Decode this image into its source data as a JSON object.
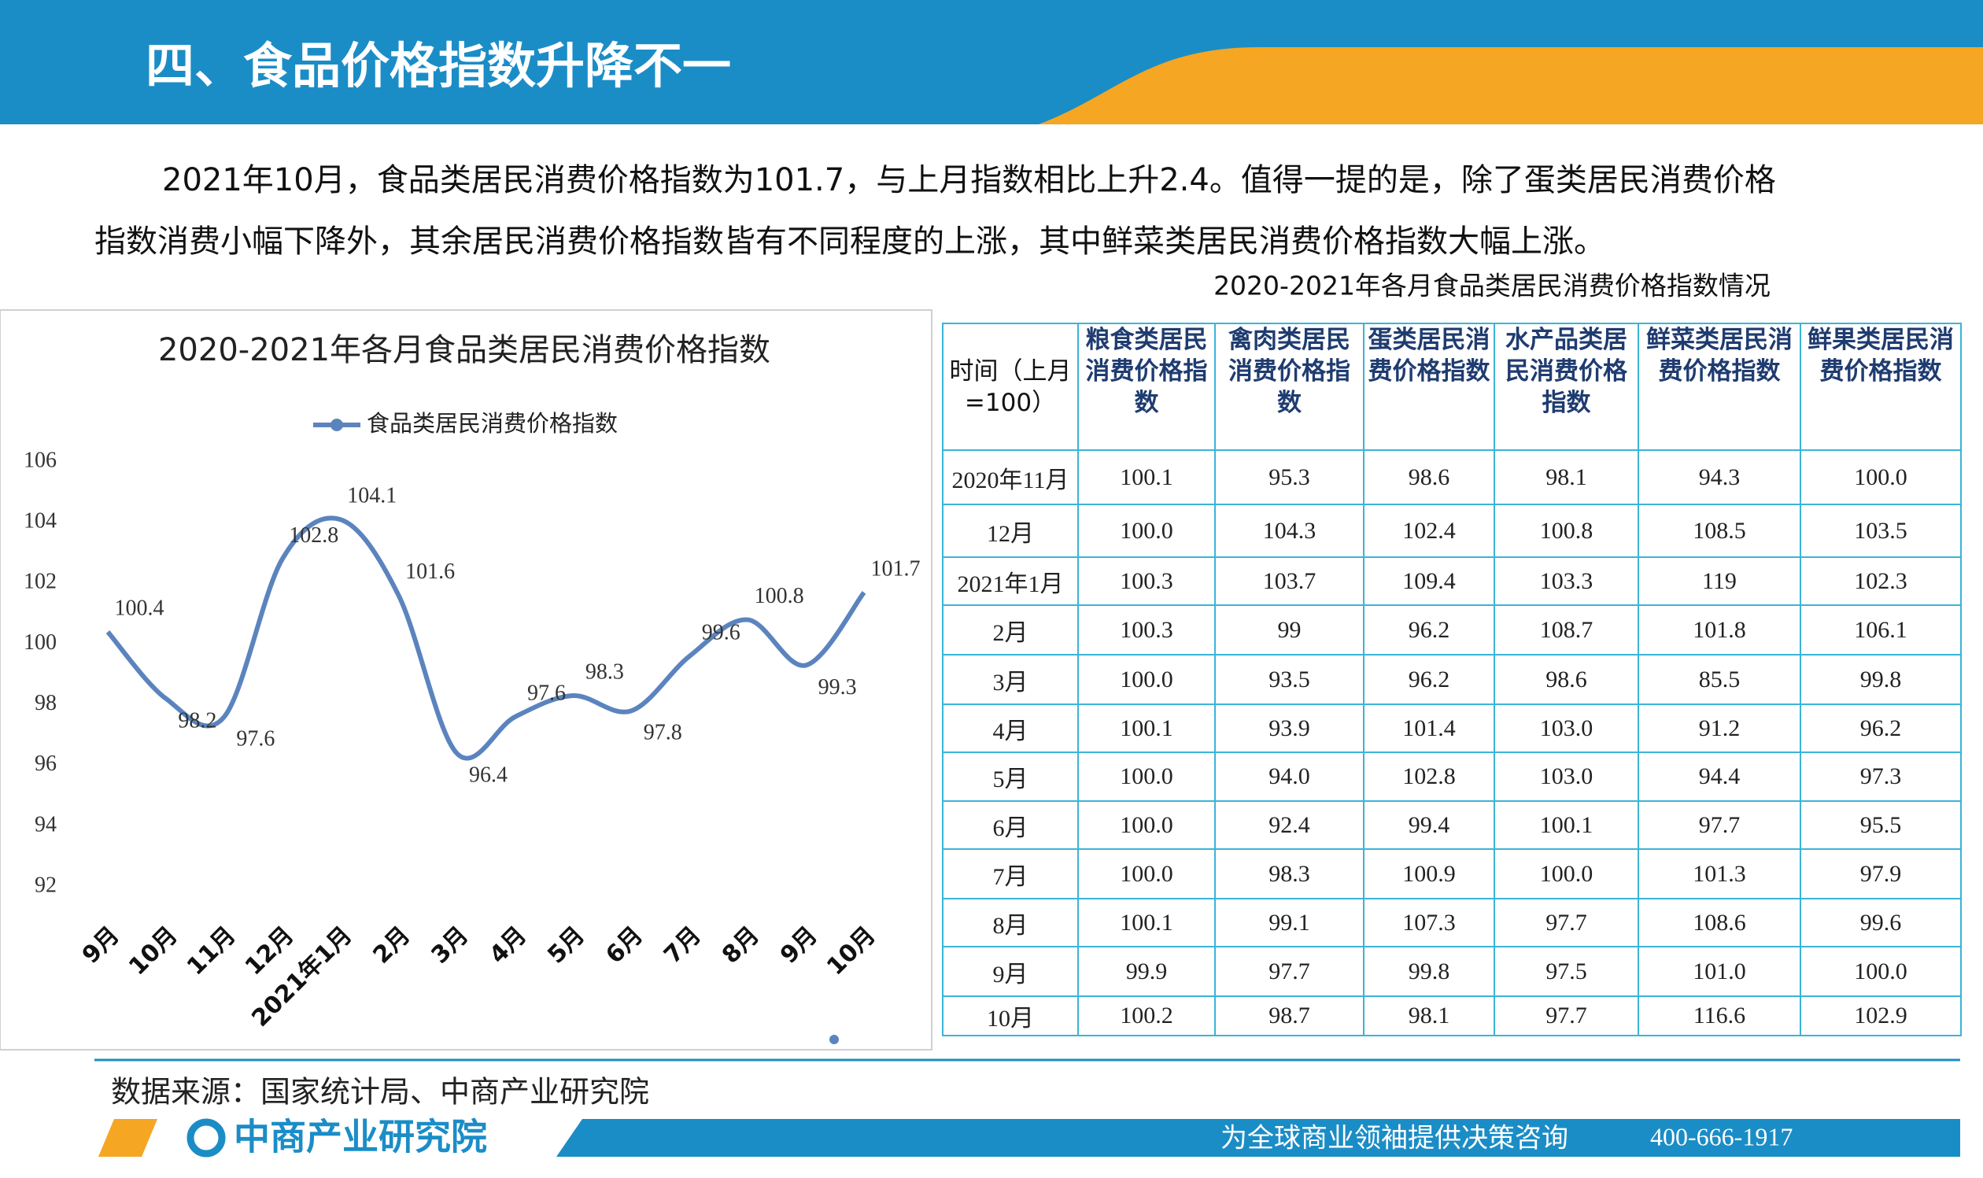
{
  "header": {
    "title": "四、食品价格指数升降不一"
  },
  "paragraph": [
    "2021年10月，食品类居民消费价格指数为101.7，与上月指数相比上升2.4。值得一提的是，除了蛋类居民消费价格",
    "指数消费小幅下降外，其余居民消费价格指数皆有不同程度的上涨，其中鲜菜类居民消费价格指数大幅上涨。"
  ],
  "chart_data": {
    "type": "line",
    "title": "2020-2021年各月食品类居民消费价格指数",
    "categories": [
      "9月",
      "10月",
      "11月",
      "12月",
      "2021年1月",
      "2月",
      "3月",
      "4月",
      "5月",
      "6月",
      "7月",
      "8月",
      "9月",
      "10月"
    ],
    "series": [
      {
        "name": "食品类居民消费价格指数",
        "color": "#5b84be",
        "values": [
          100.4,
          98.2,
          97.6,
          102.8,
          104.1,
          101.6,
          96.4,
          97.6,
          98.3,
          97.8,
          99.6,
          100.8,
          99.3,
          101.7
        ]
      }
    ],
    "ylim": [
      92,
      106
    ],
    "yticks": [
      92,
      94,
      96,
      98,
      100,
      102,
      104,
      106
    ],
    "legend": "top",
    "grid": false,
    "data_labels": true
  },
  "table": {
    "title": "2020-2021年各月食品类居民消费价格指数情况",
    "header": [
      "时间（上月=100）",
      "粮食类居民消费价格指数",
      "禽肉类居民消费价格指数",
      "蛋类居民消费价格指数",
      "水产品类居民消费价格指数",
      "鲜菜类居民消费价格指数",
      "鲜果类居民消费价格指数"
    ],
    "rows": [
      [
        "2020年11月",
        "100.1",
        "95.3",
        "98.6",
        "98.1",
        "94.3",
        "100.0"
      ],
      [
        "12月",
        "100.0",
        "104.3",
        "102.4",
        "100.8",
        "108.5",
        "103.5"
      ],
      [
        "2021年1月",
        "100.3",
        "103.7",
        "109.4",
        "103.3",
        "119",
        "102.3"
      ],
      [
        "2月",
        "100.3",
        "99",
        "96.2",
        "108.7",
        "101.8",
        "106.1"
      ],
      [
        "3月",
        "100.0",
        "93.5",
        "96.2",
        "98.6",
        "85.5",
        "99.8"
      ],
      [
        "4月",
        "100.1",
        "93.9",
        "101.4",
        "103.0",
        "91.2",
        "96.2"
      ],
      [
        "5月",
        "100.0",
        "94.0",
        "102.8",
        "103.0",
        "94.4",
        "97.3"
      ],
      [
        "6月",
        "100.0",
        "92.4",
        "99.4",
        "100.1",
        "97.7",
        "95.5"
      ],
      [
        "7月",
        "100.0",
        "98.3",
        "100.9",
        "100.0",
        "101.3",
        "97.9"
      ],
      [
        "8月",
        "100.1",
        "99.1",
        "107.3",
        "97.7",
        "108.6",
        "99.6"
      ],
      [
        "9月",
        "99.9",
        "97.7",
        "99.8",
        "97.5",
        "101.0",
        "100.0"
      ],
      [
        "10月",
        "100.2",
        "98.7",
        "98.1",
        "97.7",
        "116.6",
        "102.9"
      ]
    ]
  },
  "source": "数据来源：国家统计局、中商产业研究院",
  "footer": {
    "logo": "中商产业研究院",
    "slogan": "为全球商业领袖提供决策咨询",
    "phone": "400-666-1917"
  }
}
